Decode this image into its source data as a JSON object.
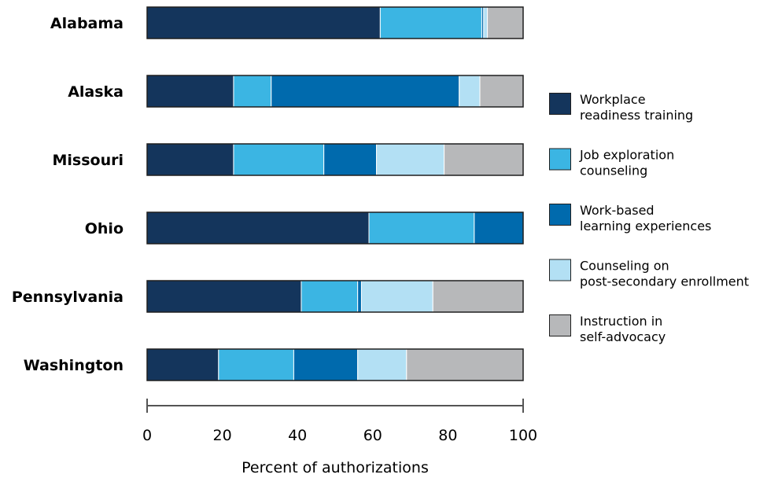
{
  "chart_data": {
    "type": "bar",
    "orientation": "horizontal",
    "stacked": true,
    "categories": [
      "Alabama",
      "Alaska",
      "Missouri",
      "Ohio",
      "Pennsylvania",
      "Washington"
    ],
    "series": [
      {
        "name": "Workplace readiness training",
        "color": "#14355c",
        "values": [
          62,
          23,
          23,
          59,
          41,
          19
        ]
      },
      {
        "name": "Job exploration counseling",
        "color": "#3bb5e3",
        "values": [
          27,
          10,
          24,
          28,
          15,
          20
        ]
      },
      {
        "name": "Work-based learning experiences",
        "color": "#006aad",
        "values": [
          0.5,
          50,
          14,
          13,
          1,
          17
        ]
      },
      {
        "name": "Counseling on post-secondary enrollment",
        "color": "#b3e0f4",
        "values": [
          1,
          5.5,
          18,
          0,
          19,
          13
        ]
      },
      {
        "name": "Instruction in self-advocacy",
        "color": "#b7b8ba",
        "values": [
          9.5,
          11.5,
          21,
          0,
          24,
          31
        ]
      }
    ],
    "legend_lines": [
      [
        "Workplace",
        "readiness training"
      ],
      [
        "Job exploration",
        "counseling"
      ],
      [
        "Work-based",
        "learning experiences"
      ],
      [
        "Counseling on",
        "post-secondary enrollment"
      ],
      [
        "Instruction in",
        "self-advocacy"
      ]
    ],
    "xlim": [
      0,
      100
    ],
    "xticks": [
      "0",
      "20",
      "40",
      "60",
      "80",
      "100"
    ],
    "xlabel": "Percent of authorizations",
    "legend_position": "right",
    "grid": false
  }
}
